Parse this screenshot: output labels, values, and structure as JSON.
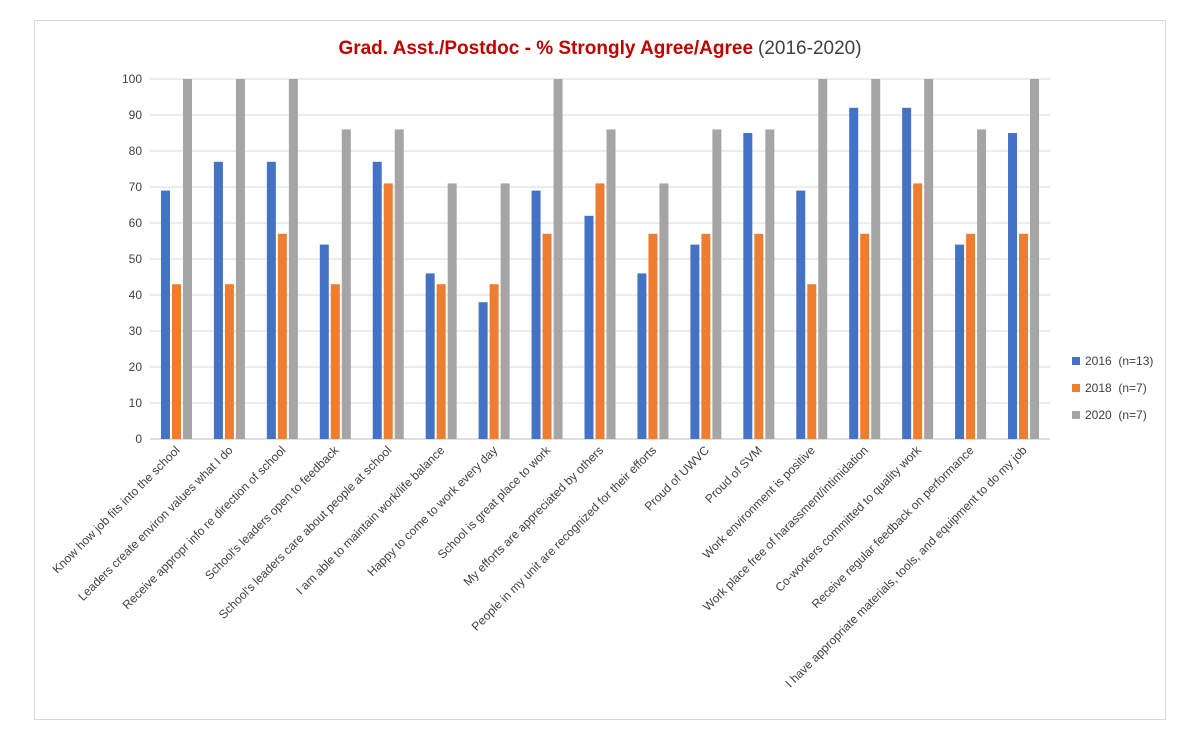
{
  "chart_data": {
    "type": "bar",
    "title": "Grad. Asst./Postdoc - % Strongly Agree/Agree",
    "subtitle": "(2016-2020)",
    "xlabel": "",
    "ylabel": "",
    "ylim": [
      0,
      100
    ],
    "yticks": [
      0,
      10,
      20,
      30,
      40,
      50,
      60,
      70,
      80,
      90,
      100
    ],
    "grid": true,
    "legend_position": "right",
    "categories": [
      "Know how job fits into the school",
      "Leaders create environ values what I do",
      "Receive appropr info re direction of school",
      "School's leaders open to feedback",
      "School's leaders care about people at school",
      "I am able to maintain work/life balance",
      "Happy to come to work every day",
      "School is great place to work",
      "My efforts are appreciated by others",
      "People in my unit are recognized for their efforts",
      "Proud of UWVC",
      "Proud of SVM",
      "Work environment is positive",
      "Work place free of harassment/intimidation",
      "Co-workers committed to quality work",
      "Receive regular feedback on performance",
      "I have appropriate materials, tools, and equipment to do my job"
    ],
    "series": [
      {
        "name": "2016  (n=13)",
        "color": "#4472c4",
        "values": [
          69,
          77,
          77,
          54,
          77,
          46,
          38,
          69,
          62,
          46,
          54,
          85,
          69,
          92,
          92,
          54,
          85
        ]
      },
      {
        "name": "2018  (n=7)",
        "color": "#ed7d31",
        "values": [
          43,
          43,
          57,
          43,
          71,
          43,
          43,
          57,
          71,
          57,
          57,
          57,
          43,
          57,
          71,
          57,
          57
        ]
      },
      {
        "name": "2020  (n=7)",
        "color": "#a5a5a5",
        "values": [
          100,
          100,
          100,
          86,
          86,
          71,
          71,
          100,
          86,
          71,
          86,
          86,
          100,
          100,
          100,
          86,
          100
        ]
      }
    ]
  }
}
